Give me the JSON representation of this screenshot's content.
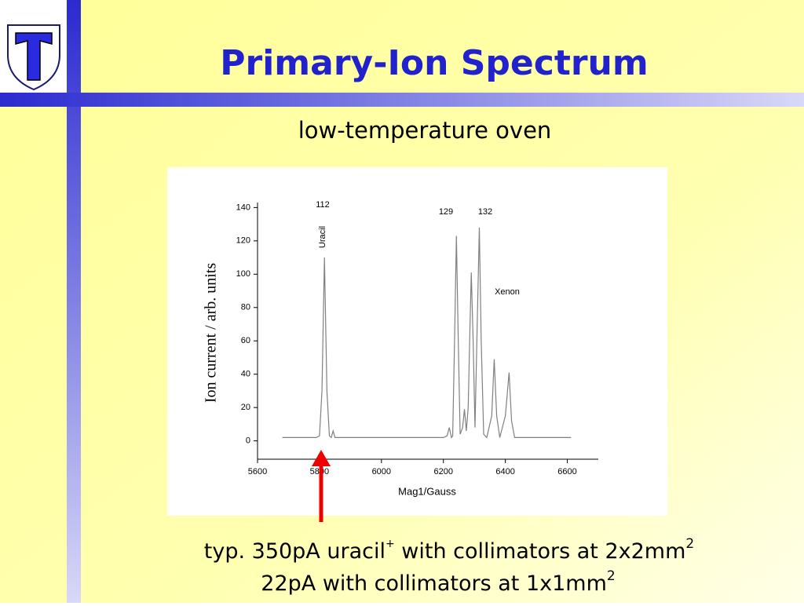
{
  "slide": {
    "title": "Primary-Ion Spectrum",
    "subtitle": "low-temperature oven",
    "caption": [
      [
        "typ. 350pA uracil",
        "+",
        " with collimators at 2x2mm",
        "2"
      ],
      [
        "22pA with collimators at 1x1mm",
        "2"
      ]
    ]
  },
  "chart_data": {
    "type": "line",
    "x_label": "Mag1/Gauss",
    "y_label": "Ion current / arb. units",
    "annotations": [
      "112",
      "Uracil",
      "129",
      "132",
      "Xenon"
    ],
    "x": [
      5680,
      5790,
      5800,
      5808,
      5816,
      5824,
      5832,
      5838,
      5844,
      5850,
      5860,
      6000,
      6200,
      6212,
      6219,
      6226,
      6230,
      6236,
      6242,
      6248,
      6254,
      6262,
      6268,
      6274,
      6280,
      6286,
      6290,
      6296,
      6302,
      6308,
      6316,
      6322,
      6330,
      6340,
      6356,
      6364,
      6372,
      6382,
      6400,
      6412,
      6420,
      6430,
      6500,
      6612
    ],
    "values": [
      2,
      2,
      3,
      30,
      110,
      30,
      3,
      2,
      6,
      2,
      2,
      2,
      2,
      3,
      8,
      2,
      3,
      60,
      123,
      60,
      4,
      8,
      19,
      6,
      20,
      70,
      101,
      60,
      8,
      60,
      128,
      60,
      4,
      2,
      15,
      49,
      15,
      2,
      15,
      41,
      12,
      2,
      2,
      2
    ],
    "color": "#808080",
    "xlim": [
      5600,
      6700
    ],
    "xticks": [
      5600,
      5800,
      6000,
      6200,
      6400,
      6600
    ],
    "ylim": [
      -11,
      143
    ],
    "yticks": [
      0,
      20,
      40,
      60,
      80,
      100,
      120,
      140
    ]
  }
}
